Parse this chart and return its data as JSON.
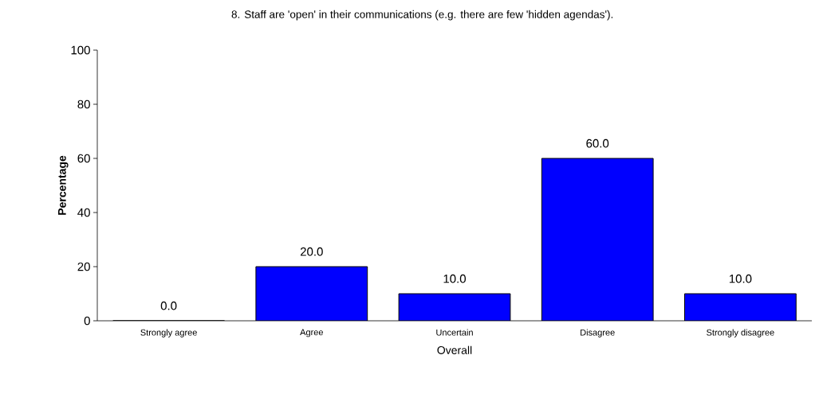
{
  "chart_data": {
    "type": "bar",
    "title": "8. Staff are 'open' in their communications (e.g. there are few 'hidden agendas').",
    "xlabel": "Overall",
    "ylabel": "Percentage",
    "categories": [
      "Strongly agree",
      "Agree",
      "Uncertain",
      "Disagree",
      "Strongly disagree"
    ],
    "values": [
      0,
      20,
      10,
      60,
      10
    ],
    "value_labels": [
      "0.0",
      "20.0",
      "10.0",
      "60.0",
      "10.0"
    ],
    "color": "#0000ff",
    "ylim": [
      0,
      100
    ],
    "yticks": [
      0,
      20,
      40,
      60,
      80,
      100
    ]
  }
}
